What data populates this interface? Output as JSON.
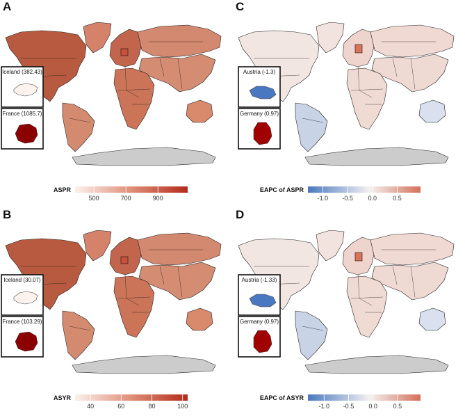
{
  "panels": [
    {
      "letter": "A",
      "legend": {
        "title": "ASPR",
        "ticks": [
          500,
          700,
          900
        ],
        "min": 382,
        "max": 1086,
        "scheme": "red"
      },
      "insets": [
        {
          "label": "Iceland (382.43)",
          "region": "iceland",
          "color": "#fcf3ef"
        },
        {
          "label": "France (1085.7)",
          "region": "france",
          "color": "#8b0000"
        }
      ],
      "colors": {
        "na": "#b85a3f",
        "greenland": "#d4826a",
        "sa": "#d38a6f",
        "europe": "#c1664c",
        "africa": "#cc7458",
        "russia": "#d3896f",
        "asia": "#d48c72",
        "australia": "#d9896c",
        "antarctica": "#cccccc",
        "highlight": "#c8503c"
      }
    },
    {
      "letter": "C",
      "legend": {
        "title": "EAPC of ASPR",
        "ticks": [
          -1.0,
          -0.5,
          0.0,
          0.5
        ],
        "min": -1.3,
        "max": 0.97,
        "scheme": "diverging"
      },
      "insets": [
        {
          "label": "Austria (-1.3)",
          "region": "austria",
          "color": "#4a78c0"
        },
        {
          "label": "Germany (0.97)",
          "region": "germany",
          "color": "#a00000"
        }
      ],
      "colors": {
        "na": "#f2e6e3",
        "greenland": "#f3e3df",
        "sa": "#c9d3e6",
        "europe": "#eed4cc",
        "africa": "#f0dbd4",
        "russia": "#f0d9d2",
        "asia": "#efd9d3",
        "australia": "#dbe0ee",
        "antarctica": "#cccccc",
        "highlight": "#d8735c"
      }
    },
    {
      "letter": "B",
      "legend": {
        "title": "ASYR",
        "ticks": [
          40,
          60,
          80,
          100
        ],
        "min": 30,
        "max": 103.3,
        "scheme": "red"
      },
      "insets": [
        {
          "label": "Iceland (30.07)",
          "region": "iceland",
          "color": "#fcf3ef"
        },
        {
          "label": "France (103.29)",
          "region": "france",
          "color": "#8b0000"
        }
      ],
      "colors": {
        "na": "#b85a3f",
        "greenland": "#d4826a",
        "sa": "#d38a6f",
        "europe": "#c1664c",
        "africa": "#cc7458",
        "russia": "#d3896f",
        "asia": "#d48c72",
        "australia": "#d9896c",
        "antarctica": "#cccccc",
        "highlight": "#c8503c"
      }
    },
    {
      "letter": "D",
      "legend": {
        "title": "EAPC of ASYR",
        "ticks": [
          -1.0,
          -0.5,
          0.0,
          0.5
        ],
        "min": -1.33,
        "max": 0.97,
        "scheme": "diverging"
      },
      "insets": [
        {
          "label": "Austria (-1.33)",
          "region": "austria",
          "color": "#4a78c0"
        },
        {
          "label": "Germany (0.97)",
          "region": "germany",
          "color": "#a00000"
        }
      ],
      "colors": {
        "na": "#f2e6e3",
        "greenland": "#f3e3df",
        "sa": "#c9d3e6",
        "europe": "#eed4cc",
        "africa": "#f0dbd4",
        "russia": "#f0d9d2",
        "asia": "#efd9d3",
        "australia": "#dbe0ee",
        "antarctica": "#cccccc",
        "highlight": "#d8735c"
      }
    }
  ]
}
